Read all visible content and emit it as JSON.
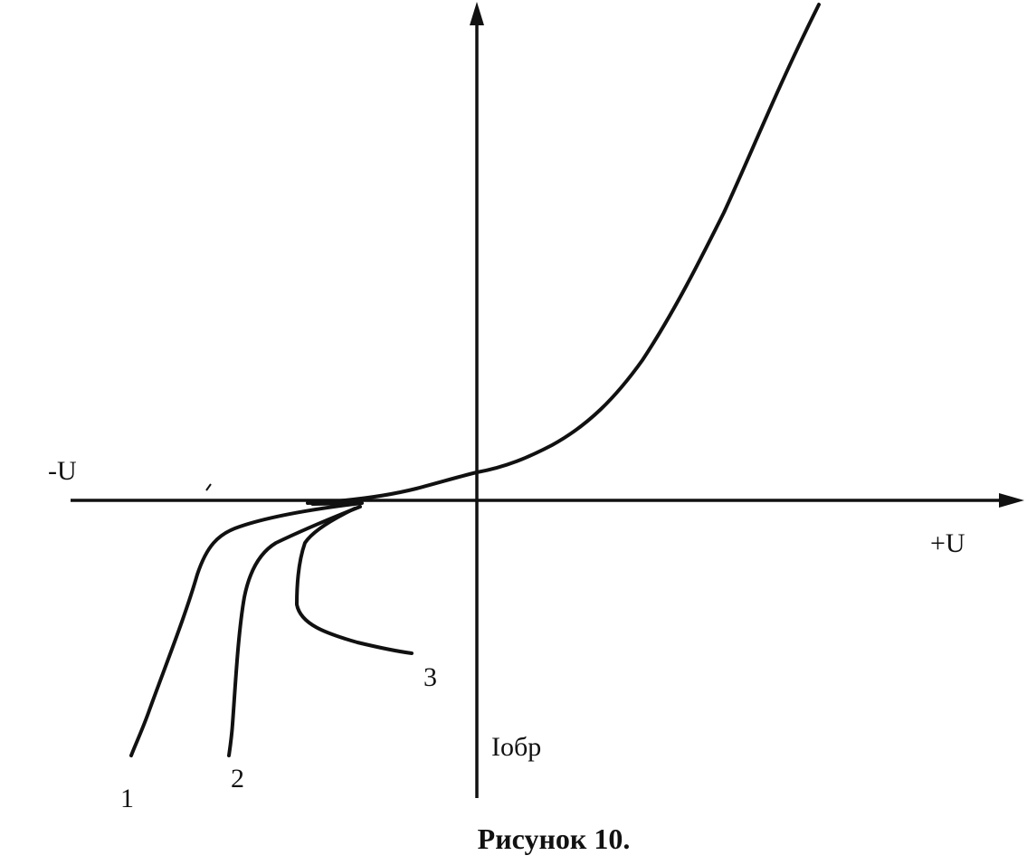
{
  "figure": {
    "labels": {
      "neg_u": "-U",
      "pos_u": "+U",
      "i_rev": "Iобр",
      "curve_1": "1",
      "curve_2": "2",
      "curve_3": "3"
    },
    "caption": "Рисунок 10."
  }
}
